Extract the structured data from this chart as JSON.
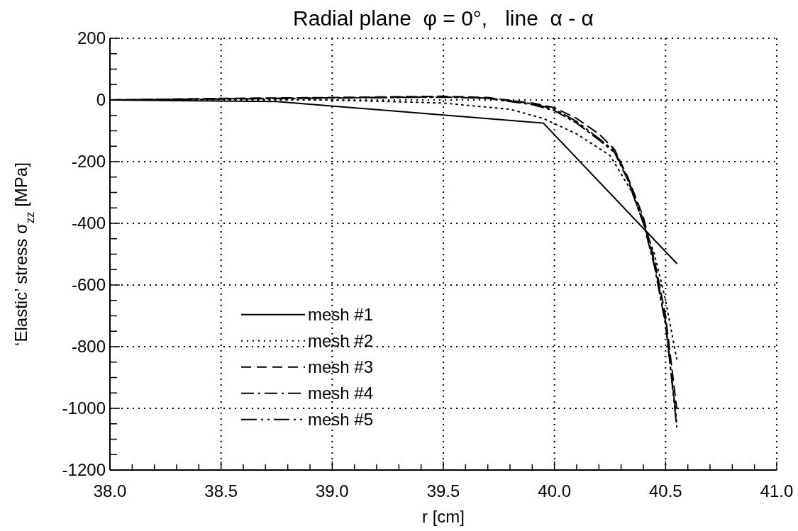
{
  "chart_data": {
    "type": "line",
    "title": "Radial plane  φ = 0°,   line  α - α",
    "xlabel": "r [cm]",
    "ylabel": "‘Elastic’ stress σ$_{zz}$ [MPa]",
    "xlim": [
      38.0,
      41.0
    ],
    "ylim": [
      -1200,
      200
    ],
    "xticks": [
      {
        "value": 38.0,
        "label": "38.0"
      },
      {
        "value": 38.1,
        "label": null
      },
      {
        "value": 38.2,
        "label": null
      },
      {
        "value": 38.3,
        "label": null
      },
      {
        "value": 38.4,
        "label": null
      },
      {
        "value": 38.5,
        "label": "38.5"
      },
      {
        "value": 38.6,
        "label": null
      },
      {
        "value": 38.7,
        "label": null
      },
      {
        "value": 38.8,
        "label": null
      },
      {
        "value": 38.9,
        "label": null
      },
      {
        "value": 39.0,
        "label": "39.0"
      },
      {
        "value": 39.1,
        "label": null
      },
      {
        "value": 39.2,
        "label": null
      },
      {
        "value": 39.3,
        "label": null
      },
      {
        "value": 39.4,
        "label": null
      },
      {
        "value": 39.5,
        "label": "39.5"
      },
      {
        "value": 39.6,
        "label": null
      },
      {
        "value": 39.7,
        "label": null
      },
      {
        "value": 39.8,
        "label": null
      },
      {
        "value": 39.9,
        "label": null
      },
      {
        "value": 40.0,
        "label": "40.0"
      },
      {
        "value": 40.1,
        "label": null
      },
      {
        "value": 40.2,
        "label": null
      },
      {
        "value": 40.3,
        "label": null
      },
      {
        "value": 40.4,
        "label": null
      },
      {
        "value": 40.5,
        "label": "40.5"
      },
      {
        "value": 40.6,
        "label": null
      },
      {
        "value": 40.7,
        "label": null
      },
      {
        "value": 40.8,
        "label": null
      },
      {
        "value": 40.9,
        "label": null
      },
      {
        "value": 41.0,
        "label": "41.0"
      }
    ],
    "yticks": [
      200,
      {
        "value": 150,
        "label": null
      },
      {
        "value": 100,
        "label": null
      },
      {
        "value": 50,
        "label": null
      },
      0,
      {
        "value": -50,
        "label": null
      },
      {
        "value": -100,
        "label": null
      },
      {
        "value": -150,
        "label": null
      },
      -200,
      {
        "value": -250,
        "label": null
      },
      {
        "value": -300,
        "label": null
      },
      {
        "value": -350,
        "label": null
      },
      -400,
      {
        "value": -450,
        "label": null
      },
      {
        "value": -500,
        "label": null
      },
      {
        "value": -550,
        "label": null
      },
      -600,
      {
        "value": -650,
        "label": null
      },
      {
        "value": -700,
        "label": null
      },
      {
        "value": -750,
        "label": null
      },
      -800,
      {
        "value": -850,
        "label": null
      },
      {
        "value": -900,
        "label": null
      },
      {
        "value": -950,
        "label": null
      },
      -1000,
      {
        "value": -1050,
        "label": null
      },
      {
        "value": -1100,
        "label": null
      },
      {
        "value": -1150,
        "label": null
      },
      -1200
    ],
    "grid": true,
    "legend": "bottom left",
    "marker": "none",
    "series": [
      {
        "name": "mesh #1",
        "color": "#000000",
        "line_style": "solid",
        "x": [
          38.0,
          38.75,
          39.95,
          40.55
        ],
        "values": [
          0,
          -5,
          -75,
          -530
        ]
      },
      {
        "name": "mesh #2",
        "color": "#000000",
        "line_style": "dotted",
        "x": [
          38.0,
          38.5,
          39.0,
          39.5,
          39.8,
          39.95,
          40.1,
          40.25,
          40.35,
          40.45,
          40.5,
          40.55
        ],
        "values": [
          0,
          2,
          0,
          -10,
          -30,
          -60,
          -110,
          -180,
          -300,
          -500,
          -650,
          -840
        ]
      },
      {
        "name": "mesh #3",
        "color": "#000000",
        "line_style": "dashed",
        "x": [
          38.0,
          38.5,
          39.0,
          39.5,
          39.7,
          39.9,
          40.0,
          40.1,
          40.2,
          40.27,
          40.33,
          40.4,
          40.45,
          40.5,
          40.55
        ],
        "values": [
          0,
          5,
          8,
          12,
          8,
          -10,
          -25,
          -60,
          -110,
          -160,
          -250,
          -380,
          -520,
          -700,
          -1000
        ]
      },
      {
        "name": "mesh #4",
        "color": "#000000",
        "line_style": "dashed",
        "x": [
          38.0,
          38.5,
          39.0,
          39.5,
          39.7,
          39.9,
          40.0,
          40.1,
          40.2,
          40.27,
          40.33,
          40.4,
          40.45,
          40.5,
          40.55
        ],
        "values": [
          0,
          4,
          7,
          10,
          5,
          -15,
          -35,
          -75,
          -130,
          -170,
          -260,
          -400,
          -540,
          -730,
          -1040
        ]
      },
      {
        "name": "mesh #5",
        "color": "#000000",
        "line_style": "dashed",
        "x": [
          38.0,
          38.5,
          39.0,
          39.5,
          39.7,
          39.9,
          40.0,
          40.1,
          40.2,
          40.27,
          40.33,
          40.4,
          40.45,
          40.5,
          40.55
        ],
        "values": [
          0,
          3,
          6,
          9,
          6,
          -12,
          -30,
          -70,
          -125,
          -165,
          -255,
          -390,
          -530,
          -720,
          -1060
        ]
      }
    ]
  }
}
